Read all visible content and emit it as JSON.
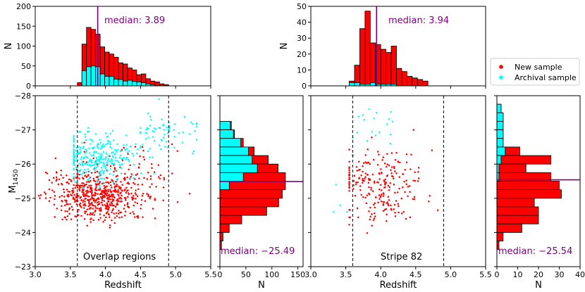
{
  "chart_data": {
    "type": "scatter",
    "colors": {
      "new": "#ff0000",
      "archival": "#00ffff",
      "median": "#800080",
      "edge": "#000000",
      "guide": "#000000"
    },
    "legend": {
      "placement": "center-right",
      "entries": [
        {
          "label": "New sample",
          "color": "#ff0000"
        },
        {
          "label": "Archival sample",
          "color": "#00ffff"
        }
      ]
    },
    "shared": {
      "xlabel": "Redshift",
      "ylabel": "M",
      "ylabel_sub": "1450",
      "nlabel": "N",
      "xlim": [
        3.0,
        5.5
      ],
      "ylim": [
        -28,
        -23
      ],
      "xticks": [
        "3.0",
        "3.5",
        "4.0",
        "4.5",
        "5.0",
        "5.5"
      ],
      "yticks": [
        "−28",
        "−27",
        "−26",
        "−25",
        "−24",
        "−23"
      ],
      "z_cuts": [
        3.6,
        4.9
      ]
    },
    "panels": [
      {
        "label": "Overlap regions",
        "z_hist": {
          "ylim": [
            0,
            200
          ],
          "yticks": [
            "0",
            "50",
            "100",
            "150",
            "200"
          ],
          "median": 3.89,
          "median_label": "median: 3.89",
          "bin_start": 3.6,
          "bin_width": 0.065,
          "total": [
            8,
            105,
            147,
            142,
            130,
            98,
            85,
            80,
            72,
            58,
            55,
            45,
            40,
            28,
            30,
            18,
            12,
            10,
            5,
            3
          ],
          "archival": [
            0,
            38,
            48,
            50,
            48,
            30,
            24,
            24,
            17,
            16,
            12,
            14,
            11,
            10,
            8,
            5,
            3,
            1,
            0,
            0
          ]
        },
        "m_hist": {
          "xlim": [
            0,
            160
          ],
          "xticks": [
            "0",
            "50",
            "100",
            "150"
          ],
          "median": -25.49,
          "median_label": "median: −25.49",
          "bin_start": -27.25,
          "bin_width": 0.25,
          "total": [
            22,
            28,
            45,
            66,
            93,
            112,
            126,
            126,
            120,
            113,
            90,
            42,
            18,
            6,
            3
          ],
          "archival": [
            20,
            26,
            40,
            55,
            62,
            72,
            45,
            18,
            0,
            0,
            0,
            0,
            0,
            0,
            0
          ]
        },
        "scatter": {
          "seed": 7,
          "new_groups": [
            {
              "n": 500,
              "z": [
                3.9,
                0.3
              ],
              "m": [
                -25.05,
                0.36
              ],
              "zlim": [
                3.2,
                4.85
              ],
              "mlim": [
                -26.4,
                -23.9
              ]
            },
            {
              "n": 110,
              "z": [
                4.25,
                0.38
              ],
              "m": [
                -25.6,
                0.5
              ],
              "zlim": [
                3.6,
                5.2
              ],
              "mlim": [
                -27.1,
                -24.0
              ]
            },
            {
              "n": 25,
              "z": [
                3.3,
                0.15
              ],
              "m": [
                -25.2,
                0.5
              ],
              "zlim": [
                3.05,
                3.6
              ],
              "mlim": [
                -26.3,
                -24.2
              ]
            }
          ],
          "archival_groups": [
            {
              "n": 320,
              "z": [
                3.9,
                0.3
              ],
              "m": [
                -26.2,
                0.35
              ],
              "zlim": [
                3.55,
                4.7
              ],
              "mlim": [
                -27.2,
                -25.3
              ]
            },
            {
              "n": 70,
              "z": [
                4.8,
                0.25
              ],
              "m": [
                -26.9,
                0.35
              ],
              "zlim": [
                4.5,
                5.3
              ],
              "mlim": [
                -27.9,
                -26.2
              ]
            }
          ]
        }
      },
      {
        "label": "Stripe 82",
        "z_hist": {
          "ylim": [
            0,
            50
          ],
          "yticks": [
            "0",
            "10",
            "20",
            "30",
            "40",
            "50"
          ],
          "median": 3.94,
          "median_label": "median: 3.94",
          "bin_start": 3.55,
          "bin_width": 0.075,
          "total": [
            3,
            13,
            36,
            47,
            27,
            26,
            23,
            21,
            25,
            11,
            9,
            6,
            5,
            4,
            3
          ],
          "archival": [
            2,
            2,
            1,
            1,
            2,
            1,
            1,
            1,
            1,
            0,
            0,
            0,
            0,
            0,
            0
          ]
        },
        "m_hist": {
          "xlim": [
            0,
            40
          ],
          "xticks": [
            "0",
            "10",
            "20",
            "30",
            "40"
          ],
          "median": -25.54,
          "median_label": "median: −25.54",
          "bin_start": -27.75,
          "bin_width": 0.25,
          "total": [
            2,
            3,
            3,
            3,
            3,
            11,
            26,
            14,
            26,
            30,
            31,
            18,
            20,
            20,
            12,
            3,
            1,
            0,
            0,
            0
          ],
          "archival": [
            2,
            3,
            3,
            3,
            3,
            4,
            2,
            1,
            1,
            0,
            0,
            0,
            0,
            0,
            0,
            0,
            0,
            0,
            0,
            0
          ]
        },
        "scatter": {
          "seed": 21,
          "new_groups": [
            {
              "n": 230,
              "z": [
                4.0,
                0.33
              ],
              "m": [
                -25.4,
                0.55
              ],
              "zlim": [
                3.55,
                5.1
              ],
              "mlim": [
                -27.0,
                -23.8
              ]
            }
          ],
          "archival_groups": [
            {
              "n": 18,
              "z": [
                3.95,
                0.25
              ],
              "m": [
                -27.2,
                0.35
              ],
              "zlim": [
                3.6,
                4.6
              ],
              "mlim": [
                -27.9,
                -26.6
              ]
            },
            {
              "n": 4,
              "z": [
                3.45,
                0.1
              ],
              "m": [
                -25.0,
                0.3
              ],
              "zlim": [
                3.3,
                3.6
              ],
              "mlim": [
                -25.4,
                -24.6
              ]
            }
          ]
        }
      }
    ]
  }
}
